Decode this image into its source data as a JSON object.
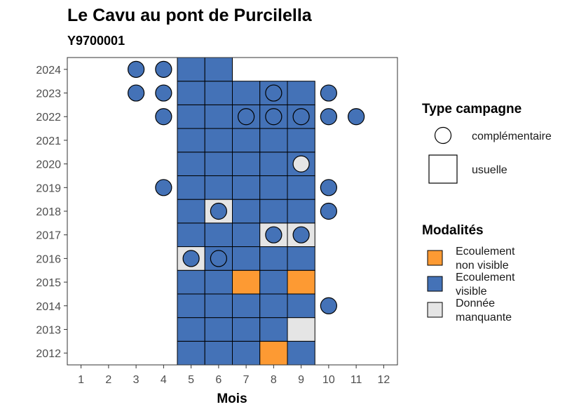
{
  "chart_data": {
    "type": "heatmap",
    "title": "Le Cavu au pont de Purcilella",
    "subtitle": "Y9700001",
    "xlabel": "Mois",
    "ylabel": "",
    "x_ticks": [
      1,
      2,
      3,
      4,
      5,
      6,
      7,
      8,
      9,
      10,
      11,
      12
    ],
    "y_ticks": [
      2012,
      2013,
      2014,
      2015,
      2016,
      2017,
      2018,
      2019,
      2020,
      2021,
      2022,
      2023,
      2024
    ],
    "xlim": [
      0.5,
      12.5
    ],
    "ylim": [
      2011.5,
      2024.5
    ],
    "grid": false,
    "colors": {
      "Ecoulement non visible": "#fd9a33",
      "Ecoulement visible": "#4472b7",
      "Donnée manquante": "#e5e5e5"
    },
    "legend": {
      "shape_title": "Type campagne",
      "shape_entries": [
        {
          "label": "complémentaire",
          "shape": "circle"
        },
        {
          "label": "usuelle",
          "shape": "square"
        }
      ],
      "fill_title": "Modalités",
      "fill_entries": [
        {
          "lines": [
            "Ecoulement",
            "non visible"
          ],
          "color": "#fd9a33",
          "key": "Ecoulement non visible"
        },
        {
          "lines": [
            "Ecoulement",
            "visible"
          ],
          "color": "#4472b7",
          "key": "Ecoulement visible"
        },
        {
          "lines": [
            "Donnée",
            "manquante"
          ],
          "color": "#e5e5e5",
          "key": "Donnée manquante"
        }
      ],
      "placement": "right"
    },
    "usuelle": [
      {
        "year": 2012,
        "month": 5,
        "modalite": "Ecoulement visible"
      },
      {
        "year": 2012,
        "month": 6,
        "modalite": "Ecoulement visible"
      },
      {
        "year": 2012,
        "month": 7,
        "modalite": "Ecoulement visible"
      },
      {
        "year": 2012,
        "month": 8,
        "modalite": "Ecoulement non visible"
      },
      {
        "year": 2012,
        "month": 9,
        "modalite": "Ecoulement visible"
      },
      {
        "year": 2013,
        "month": 5,
        "modalite": "Ecoulement visible"
      },
      {
        "year": 2013,
        "month": 6,
        "modalite": "Ecoulement visible"
      },
      {
        "year": 2013,
        "month": 7,
        "modalite": "Ecoulement visible"
      },
      {
        "year": 2013,
        "month": 8,
        "modalite": "Ecoulement visible"
      },
      {
        "year": 2013,
        "month": 9,
        "modalite": "Donnée manquante"
      },
      {
        "year": 2014,
        "month": 5,
        "modalite": "Ecoulement visible"
      },
      {
        "year": 2014,
        "month": 6,
        "modalite": "Ecoulement visible"
      },
      {
        "year": 2014,
        "month": 7,
        "modalite": "Ecoulement visible"
      },
      {
        "year": 2014,
        "month": 8,
        "modalite": "Ecoulement visible"
      },
      {
        "year": 2014,
        "month": 9,
        "modalite": "Ecoulement visible"
      },
      {
        "year": 2015,
        "month": 5,
        "modalite": "Ecoulement visible"
      },
      {
        "year": 2015,
        "month": 6,
        "modalite": "Ecoulement visible"
      },
      {
        "year": 2015,
        "month": 7,
        "modalite": "Ecoulement non visible"
      },
      {
        "year": 2015,
        "month": 8,
        "modalite": "Ecoulement visible"
      },
      {
        "year": 2015,
        "month": 9,
        "modalite": "Ecoulement non visible"
      },
      {
        "year": 2016,
        "month": 5,
        "modalite": "Donnée manquante"
      },
      {
        "year": 2016,
        "month": 6,
        "modalite": "Ecoulement visible"
      },
      {
        "year": 2016,
        "month": 7,
        "modalite": "Ecoulement visible"
      },
      {
        "year": 2016,
        "month": 8,
        "modalite": "Ecoulement visible"
      },
      {
        "year": 2016,
        "month": 9,
        "modalite": "Ecoulement visible"
      },
      {
        "year": 2017,
        "month": 5,
        "modalite": "Ecoulement visible"
      },
      {
        "year": 2017,
        "month": 6,
        "modalite": "Ecoulement visible"
      },
      {
        "year": 2017,
        "month": 7,
        "modalite": "Ecoulement visible"
      },
      {
        "year": 2017,
        "month": 8,
        "modalite": "Donnée manquante"
      },
      {
        "year": 2017,
        "month": 9,
        "modalite": "Donnée manquante"
      },
      {
        "year": 2018,
        "month": 5,
        "modalite": "Ecoulement visible"
      },
      {
        "year": 2018,
        "month": 6,
        "modalite": "Donnée manquante"
      },
      {
        "year": 2018,
        "month": 7,
        "modalite": "Ecoulement visible"
      },
      {
        "year": 2018,
        "month": 8,
        "modalite": "Ecoulement visible"
      },
      {
        "year": 2018,
        "month": 9,
        "modalite": "Ecoulement visible"
      },
      {
        "year": 2019,
        "month": 5,
        "modalite": "Ecoulement visible"
      },
      {
        "year": 2019,
        "month": 6,
        "modalite": "Ecoulement visible"
      },
      {
        "year": 2019,
        "month": 7,
        "modalite": "Ecoulement visible"
      },
      {
        "year": 2019,
        "month": 8,
        "modalite": "Ecoulement visible"
      },
      {
        "year": 2019,
        "month": 9,
        "modalite": "Ecoulement visible"
      },
      {
        "year": 2020,
        "month": 5,
        "modalite": "Ecoulement visible"
      },
      {
        "year": 2020,
        "month": 6,
        "modalite": "Ecoulement visible"
      },
      {
        "year": 2020,
        "month": 7,
        "modalite": "Ecoulement visible"
      },
      {
        "year": 2020,
        "month": 8,
        "modalite": "Ecoulement visible"
      },
      {
        "year": 2020,
        "month": 9,
        "modalite": "Ecoulement visible"
      },
      {
        "year": 2021,
        "month": 5,
        "modalite": "Ecoulement visible"
      },
      {
        "year": 2021,
        "month": 6,
        "modalite": "Ecoulement visible"
      },
      {
        "year": 2021,
        "month": 7,
        "modalite": "Ecoulement visible"
      },
      {
        "year": 2021,
        "month": 8,
        "modalite": "Ecoulement visible"
      },
      {
        "year": 2021,
        "month": 9,
        "modalite": "Ecoulement visible"
      },
      {
        "year": 2022,
        "month": 5,
        "modalite": "Ecoulement visible"
      },
      {
        "year": 2022,
        "month": 6,
        "modalite": "Ecoulement visible"
      },
      {
        "year": 2022,
        "month": 7,
        "modalite": "Ecoulement visible"
      },
      {
        "year": 2022,
        "month": 8,
        "modalite": "Ecoulement visible"
      },
      {
        "year": 2022,
        "month": 9,
        "modalite": "Ecoulement visible"
      },
      {
        "year": 2023,
        "month": 5,
        "modalite": "Ecoulement visible"
      },
      {
        "year": 2023,
        "month": 6,
        "modalite": "Ecoulement visible"
      },
      {
        "year": 2023,
        "month": 7,
        "modalite": "Ecoulement visible"
      },
      {
        "year": 2023,
        "month": 8,
        "modalite": "Ecoulement visible"
      },
      {
        "year": 2023,
        "month": 9,
        "modalite": "Ecoulement visible"
      },
      {
        "year": 2024,
        "month": 5,
        "modalite": "Ecoulement visible"
      },
      {
        "year": 2024,
        "month": 6,
        "modalite": "Ecoulement visible"
      }
    ],
    "complementaire": [
      {
        "year": 2014,
        "month": 10,
        "modalite": "Ecoulement visible"
      },
      {
        "year": 2016,
        "month": 5,
        "modalite": "Ecoulement visible"
      },
      {
        "year": 2016,
        "month": 6,
        "modalite": "Ecoulement visible"
      },
      {
        "year": 2017,
        "month": 8,
        "modalite": "Ecoulement visible"
      },
      {
        "year": 2017,
        "month": 9,
        "modalite": "Ecoulement visible"
      },
      {
        "year": 2018,
        "month": 6,
        "modalite": "Ecoulement visible"
      },
      {
        "year": 2018,
        "month": 10,
        "modalite": "Ecoulement visible"
      },
      {
        "year": 2019,
        "month": 4,
        "modalite": "Ecoulement visible"
      },
      {
        "year": 2019,
        "month": 10,
        "modalite": "Ecoulement visible"
      },
      {
        "year": 2020,
        "month": 9,
        "modalite": "Donnée manquante"
      },
      {
        "year": 2022,
        "month": 4,
        "modalite": "Ecoulement visible"
      },
      {
        "year": 2022,
        "month": 7,
        "modalite": "Ecoulement visible"
      },
      {
        "year": 2022,
        "month": 8,
        "modalite": "Ecoulement visible"
      },
      {
        "year": 2022,
        "month": 9,
        "modalite": "Ecoulement visible"
      },
      {
        "year": 2022,
        "month": 10,
        "modalite": "Ecoulement visible"
      },
      {
        "year": 2022,
        "month": 11,
        "modalite": "Ecoulement visible"
      },
      {
        "year": 2023,
        "month": 3,
        "modalite": "Ecoulement visible"
      },
      {
        "year": 2023,
        "month": 4,
        "modalite": "Ecoulement visible"
      },
      {
        "year": 2023,
        "month": 8,
        "modalite": "Ecoulement visible"
      },
      {
        "year": 2023,
        "month": 10,
        "modalite": "Ecoulement visible"
      },
      {
        "year": 2024,
        "month": 3,
        "modalite": "Ecoulement visible"
      },
      {
        "year": 2024,
        "month": 4,
        "modalite": "Ecoulement visible"
      }
    ]
  }
}
